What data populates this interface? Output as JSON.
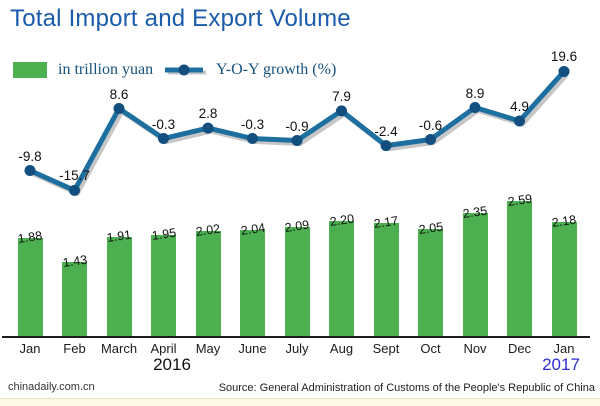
{
  "title": "Total Import and Export Volume",
  "legend": {
    "bars": "in trillion yuan",
    "line": "Y-O-Y growth (%)"
  },
  "chart_data": {
    "type": "bar+line",
    "title": "Total Import and Export Volume",
    "categories": [
      "Jan",
      "Feb",
      "March",
      "April",
      "May",
      "June",
      "July",
      "Aug",
      "Sept",
      "Oct",
      "Nov",
      "Dec",
      "Jan"
    ],
    "x_axis_years": {
      "left_group": "2016",
      "right_group": "2017"
    },
    "series": [
      {
        "name": "in trillion yuan",
        "type": "bar",
        "color": "#4CB050",
        "values": [
          1.88,
          1.43,
          1.91,
          1.95,
          2.02,
          2.04,
          2.09,
          2.2,
          2.17,
          2.05,
          2.35,
          2.59,
          2.18
        ],
        "labels": [
          "1.88",
          "1.43",
          "1.91",
          "1.95",
          "2.02",
          "2.04",
          "2.09",
          "2.20",
          "2.17",
          "2.05",
          "2.35",
          "2.59",
          "2.18"
        ]
      },
      {
        "name": "Y-O-Y growth (%)",
        "type": "line",
        "color": "#1d6fa0",
        "point_color": "#124f7e",
        "shadow_color": "#c6c6c6",
        "values": [
          -9.8,
          -15.7,
          8.6,
          -0.3,
          2.8,
          -0.3,
          -0.9,
          7.9,
          -2.4,
          -0.6,
          8.9,
          4.9,
          19.6
        ],
        "labels": [
          "-9.8",
          "-15.7",
          "8.6",
          "-0.3",
          "2.8",
          "-0.3",
          "-0.9",
          "7.9",
          "-2.4",
          "-0.6",
          "8.9",
          "4.9",
          "19.6"
        ]
      }
    ],
    "grid": false,
    "legend_position": "top-left",
    "value_labels_shown": true
  },
  "years": {
    "y2016": "2016",
    "y2017": "2017"
  },
  "footer": {
    "site": "chinadaily.com.cn",
    "source": "Source: General Administration of Customs of the People's Republic of China"
  },
  "colors": {
    "title": "#1a5cab",
    "bar_green": "#4CB050",
    "line_blue": "#1d6fa0",
    "dot_navy": "#124f7e",
    "year_2017_blue": "#2e2ed2"
  }
}
